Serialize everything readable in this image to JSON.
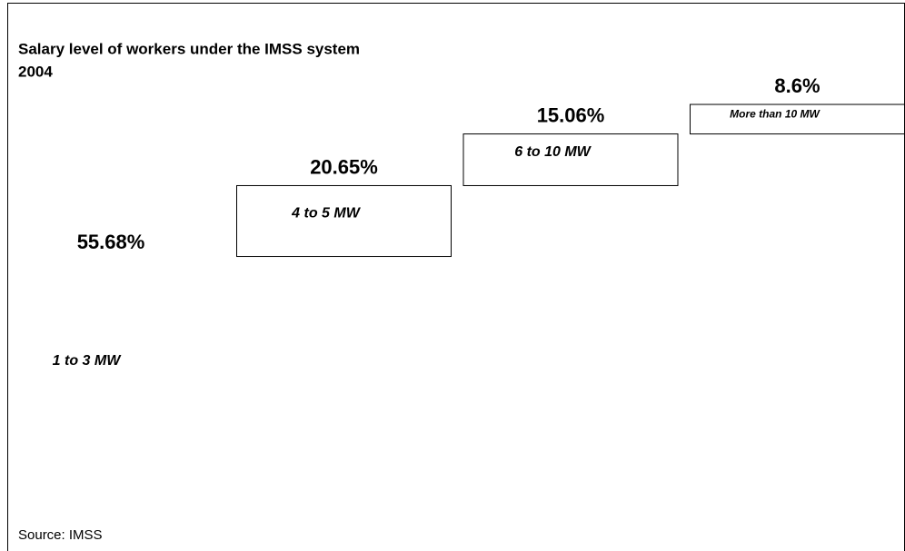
{
  "chart_data": {
    "type": "waterfall",
    "title": "Salary level of workers under the IMSS system",
    "subtitle": "2004",
    "source": "Source: IMSS",
    "categories": [
      "1 to 3 MW",
      "4 to 5 MW",
      "6 to 10 MW",
      "More than 10 MW"
    ],
    "values": [
      55.68,
      20.65,
      15.06,
      8.6
    ],
    "value_labels": [
      "55.68%",
      "20.65%",
      "15.06%",
      "8.6%"
    ],
    "colors": [
      "#ffffff",
      "#000000",
      "#000000",
      "#000000"
    ],
    "ylim": [
      0,
      100
    ]
  }
}
